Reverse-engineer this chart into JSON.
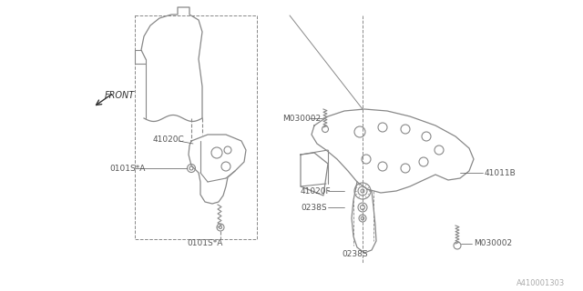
{
  "bg_color": "#ffffff",
  "line_color": "#888888",
  "text_color": "#555555",
  "dark_line": "#333333",
  "fig_width": 6.4,
  "fig_height": 3.2,
  "dpi": 100,
  "watermark": "A410001303",
  "labels": {
    "front": "FRONT",
    "41020C": "41020C",
    "0101S_A_left": "0101S*A",
    "0101S_A_bot": "0101S*A",
    "41011B": "41011B",
    "M030002_top": "M030002",
    "41020F": "41020F",
    "0238S_left": "0238S",
    "0238S_bot": "0238S",
    "M030002_bot": "M030002"
  }
}
